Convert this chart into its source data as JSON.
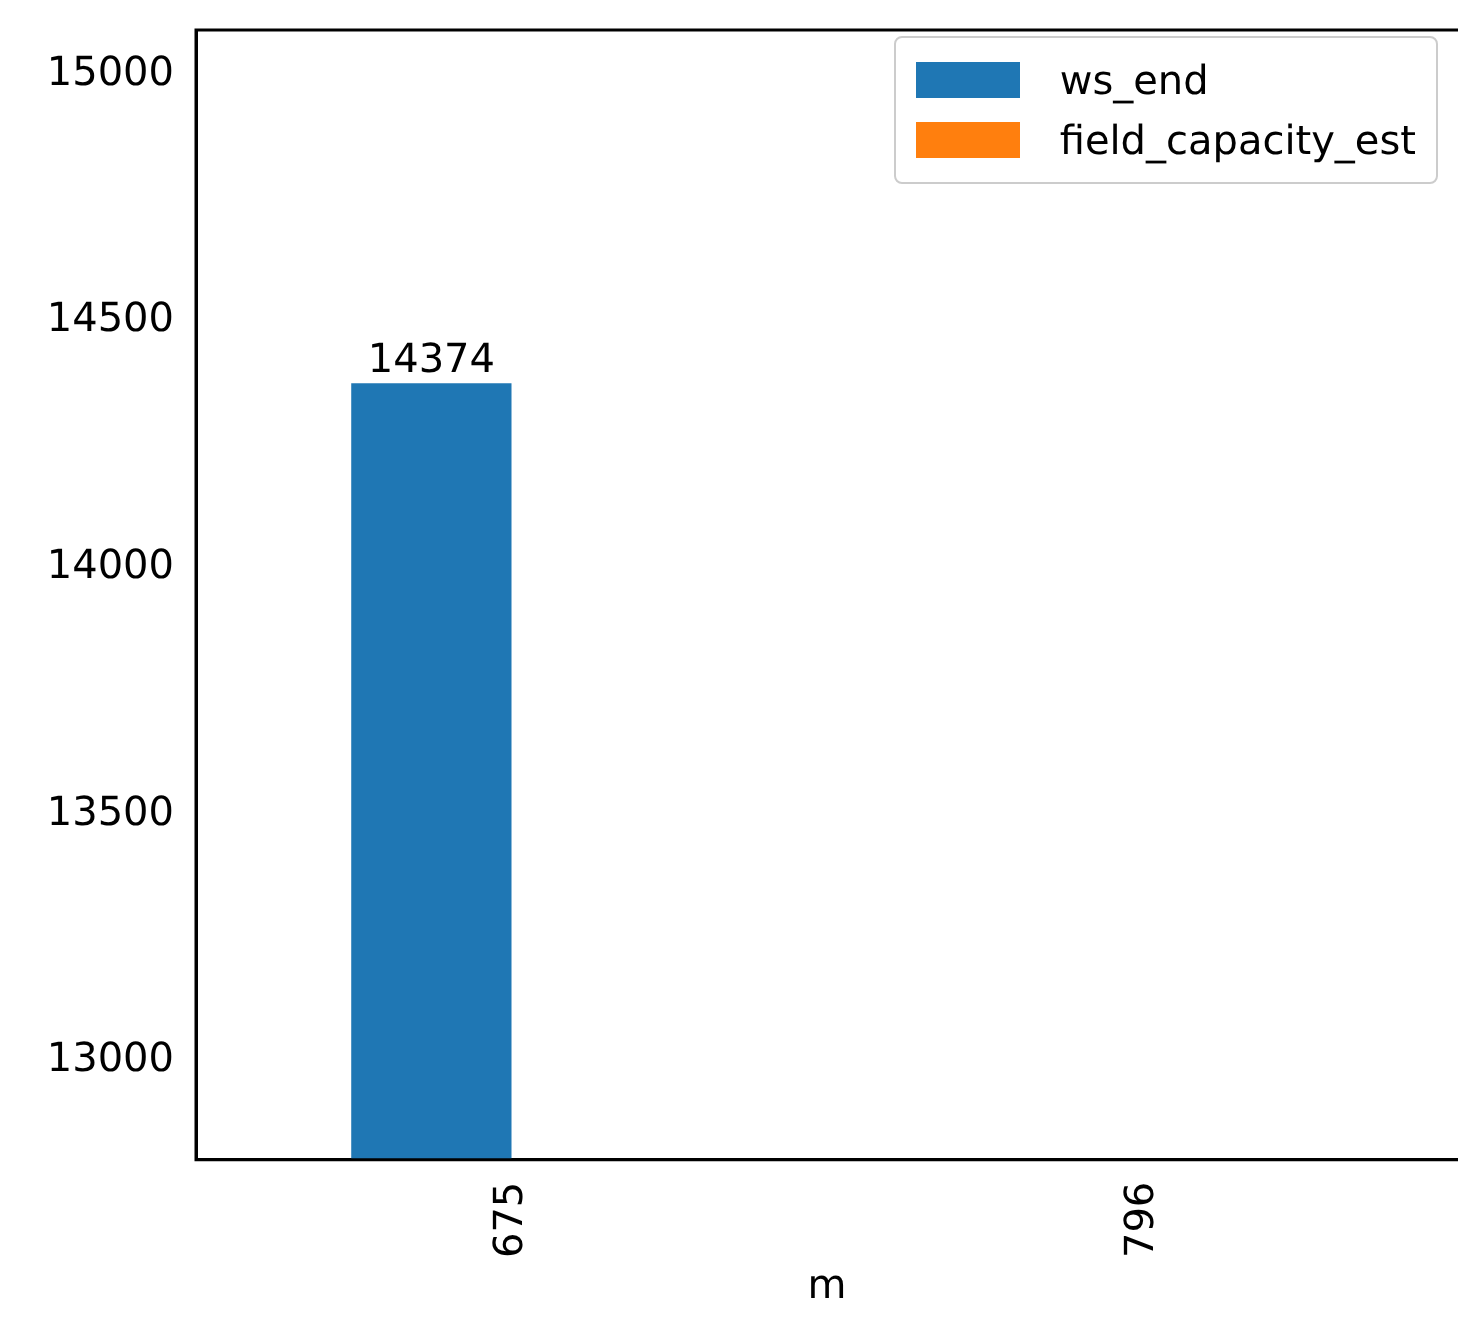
{
  "chart_data": {
    "type": "bar",
    "xlabel": "m",
    "categories": [
      "675",
      "796"
    ],
    "series": [
      {
        "name": "ws_end",
        "color": "#1f77b4",
        "values": [
          14374,
          null
        ],
        "value_labels": [
          "14374",
          null
        ]
      },
      {
        "name": "field_capacity_est",
        "color": "#ff7f0e",
        "values": [
          null,
          null
        ]
      }
    ],
    "ylim": [
      12800,
      15090
    ],
    "yticks": [
      13000,
      13500,
      14000,
      14500,
      15000
    ],
    "grid": false,
    "legend": "top right"
  }
}
